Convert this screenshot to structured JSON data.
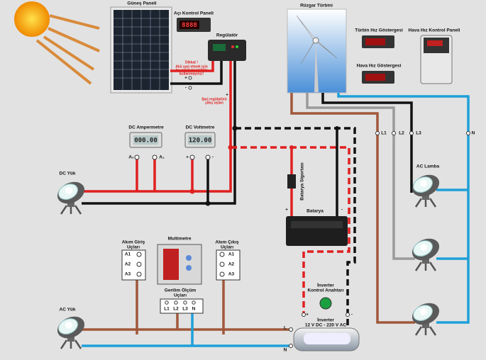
{
  "solar": {
    "panel": "Güneş Paneli",
    "angle_panel": "Açı Kontrol Paneli",
    "angle_display": "8888",
    "regulator": "Regülatör",
    "warning": [
      "Dikkat !",
      "Akü şarj etmek için",
      "bu uçları kesinlikle",
      "kullanmayınız!"
    ],
    "panel_terminals": [
      "+",
      "-"
    ],
    "regulator_output": [
      "Şarj regülatörü",
      "çıkış uçları"
    ],
    "regulator_terminals": [
      "+",
      "-"
    ]
  },
  "wind": {
    "turbine": "Rüzgar Türbini",
    "turbine_speed": "Türbin Hız Göstergesi",
    "wind_speed": "Hava Hız Göstergesi",
    "wind_control": "Hava Hız Kontrol Paneli",
    "phases": [
      "L1",
      "L2",
      "L3",
      "N"
    ]
  },
  "dc": {
    "ammeter": "DC Ampermetre",
    "ammeter_display": "000.00",
    "voltmeter": "DC Voltmetre",
    "voltmeter_display": "120.00",
    "ammeter_terminals": [
      "A₀",
      "A₁"
    ],
    "voltmeter_terminals": [
      "+",
      "-"
    ],
    "load": "DC Yük"
  },
  "battery": {
    "fuse": "Batarya Sigortası",
    "label": "Batarya",
    "terminals": [
      "+",
      "-"
    ]
  },
  "ac": {
    "lamp": "AC Lamba",
    "load": "AC Yük"
  },
  "multimeter": {
    "label": "Multimetre",
    "current_in": [
      "Akım Giriş",
      "Uçları"
    ],
    "current_out": [
      "Akım Çıkış",
      "Uçları"
    ],
    "current_terminals": [
      "A1",
      "A2",
      "A3"
    ],
    "voltage": [
      "Gerilim Ölçüm",
      "Uçları"
    ],
    "voltage_terminals": [
      "L1",
      "L2",
      "L3",
      "N"
    ]
  },
  "inverter": {
    "switch": [
      "İnverter",
      "Kontrol Anahtarı"
    ],
    "label": [
      "İnverter",
      "12 V DC - 220 V AC"
    ],
    "terminals": [
      "+",
      "-"
    ],
    "outputs": [
      "L",
      "N"
    ]
  }
}
